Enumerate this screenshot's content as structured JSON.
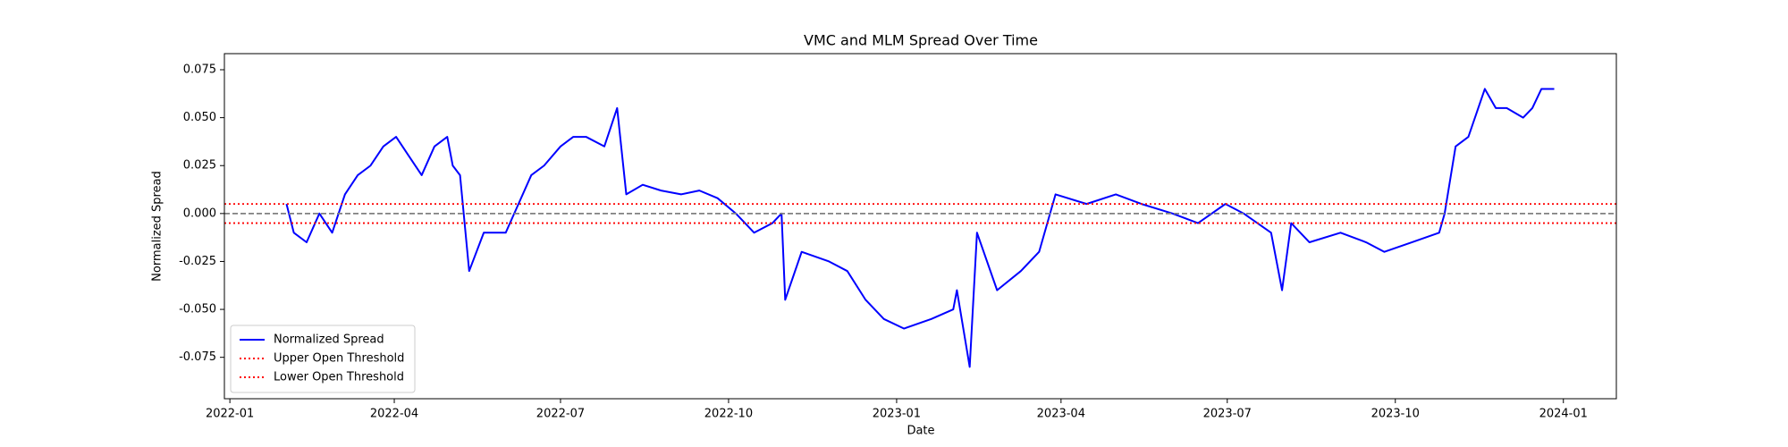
{
  "chart_data": {
    "type": "line",
    "title": "VMC and MLM Spread Over Time",
    "xlabel": "Date",
    "ylabel": "Normalized Spread",
    "x": [
      "2022-02-01",
      "2022-02-05",
      "2022-02-12",
      "2022-02-19",
      "2022-02-26",
      "2022-03-05",
      "2022-03-12",
      "2022-03-19",
      "2022-03-26",
      "2022-04-02",
      "2022-04-09",
      "2022-04-16",
      "2022-04-23",
      "2022-04-30",
      "2022-05-03",
      "2022-05-07",
      "2022-05-12",
      "2022-05-20",
      "2022-06-01",
      "2022-06-08",
      "2022-06-15",
      "2022-06-22",
      "2022-07-01",
      "2022-07-08",
      "2022-07-15",
      "2022-07-25",
      "2022-08-01",
      "2022-08-06",
      "2022-08-15",
      "2022-08-25",
      "2022-09-05",
      "2022-09-15",
      "2022-09-25",
      "2022-10-05",
      "2022-10-15",
      "2022-10-25",
      "2022-10-30",
      "2022-11-01",
      "2022-11-10",
      "2022-11-25",
      "2022-12-05",
      "2022-12-15",
      "2022-12-25",
      "2023-01-05",
      "2023-01-20",
      "2023-02-01",
      "2023-02-03",
      "2023-02-10",
      "2023-02-14",
      "2023-02-25",
      "2023-03-10",
      "2023-03-20",
      "2023-03-29",
      "2023-04-15",
      "2023-05-01",
      "2023-05-15",
      "2023-06-01",
      "2023-06-15",
      "2023-06-30",
      "2023-07-10",
      "2023-07-25",
      "2023-07-31",
      "2023-08-05",
      "2023-08-15",
      "2023-09-01",
      "2023-09-15",
      "2023-09-25",
      "2023-10-10",
      "2023-10-25",
      "2023-10-28",
      "2023-11-03",
      "2023-11-10",
      "2023-11-19",
      "2023-11-25",
      "2023-12-01",
      "2023-12-10",
      "2023-12-15",
      "2023-12-20",
      "2023-12-27"
    ],
    "series": [
      {
        "name": "Normalized Spread",
        "color": "#0000ff",
        "values": [
          0.005,
          -0.01,
          -0.015,
          0.0,
          -0.01,
          0.01,
          0.02,
          0.025,
          0.035,
          0.04,
          0.03,
          0.02,
          0.035,
          0.04,
          0.025,
          0.02,
          -0.03,
          -0.01,
          -0.01,
          0.005,
          0.02,
          0.025,
          0.035,
          0.04,
          0.04,
          0.035,
          0.055,
          0.01,
          0.015,
          0.012,
          0.01,
          0.012,
          0.008,
          0.0,
          -0.01,
          -0.005,
          0.0,
          -0.045,
          -0.02,
          -0.025,
          -0.03,
          -0.045,
          -0.055,
          -0.06,
          -0.055,
          -0.05,
          -0.04,
          -0.08,
          -0.01,
          -0.04,
          -0.03,
          -0.02,
          0.01,
          0.005,
          0.01,
          0.005,
          0.0,
          -0.005,
          0.005,
          0.0,
          -0.01,
          -0.04,
          -0.005,
          -0.015,
          -0.01,
          -0.015,
          -0.02,
          -0.015,
          -0.01,
          0.0,
          0.035,
          0.04,
          0.065,
          0.055,
          0.055,
          0.05,
          0.055,
          0.065,
          0.065
        ]
      }
    ],
    "hlines": [
      {
        "name": "Upper Open Threshold",
        "color": "#ff0000",
        "style": "dotted",
        "value": 0.005
      },
      {
        "name": "Lower Open Threshold",
        "color": "#ff0000",
        "style": "dotted",
        "value": -0.005
      },
      {
        "color": "#808080",
        "style": "dashed",
        "value": 0
      }
    ],
    "xlim": [
      "2021-12-29",
      "2024-01-30"
    ],
    "xticks": [
      {
        "value": "2022-01-01",
        "label": "2022-01"
      },
      {
        "value": "2022-04-01",
        "label": "2022-04"
      },
      {
        "value": "2022-07-01",
        "label": "2022-07"
      },
      {
        "value": "2022-10-01",
        "label": "2022-10"
      },
      {
        "value": "2023-01-01",
        "label": "2023-01"
      },
      {
        "value": "2023-04-01",
        "label": "2023-04"
      },
      {
        "value": "2023-07-01",
        "label": "2023-07"
      },
      {
        "value": "2023-10-01",
        "label": "2023-10"
      },
      {
        "value": "2024-01-01",
        "label": "2024-01"
      }
    ],
    "ylim": [
      -0.0966,
      0.0834
    ],
    "yticks": [
      -0.075,
      {
        "value": -0.05,
        "label": "-0.050"
      },
      -0.025,
      {
        "value": 0,
        "label": "0.000"
      },
      0.025,
      {
        "value": 0.05,
        "label": "0.050"
      },
      0.075
    ],
    "legend": "lower left"
  }
}
